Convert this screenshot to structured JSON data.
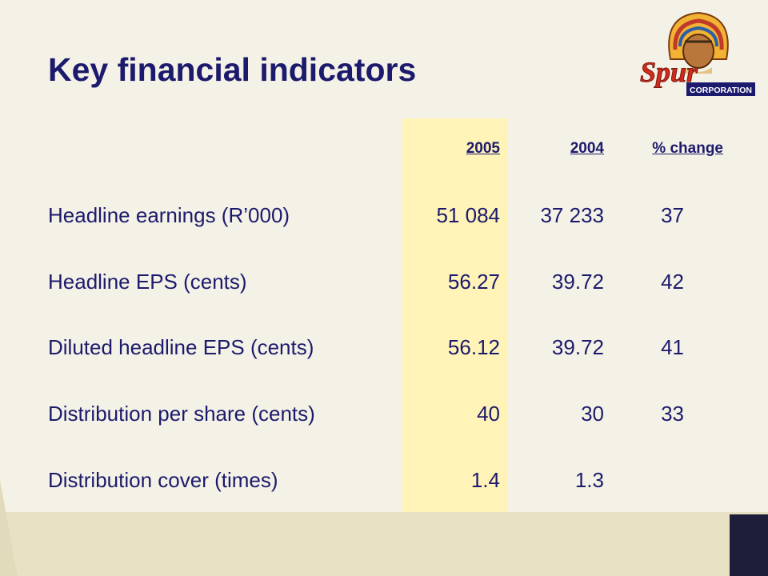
{
  "title": "Key financial indicators",
  "logo": {
    "name": "Spur",
    "caption": "CORPORATION",
    "icon": "chief-headdress-icon"
  },
  "colors": {
    "title": "#1c1a6c",
    "highlight": "#fff3b8",
    "background": "#f4f2e6",
    "logo_red": "#d32a1c"
  },
  "table": {
    "headers": [
      "2005",
      "2004",
      "% change"
    ],
    "rows": [
      {
        "label": "Headline earnings (R’000)",
        "y2005": "51 084",
        "y2004": "37 233",
        "change": "37"
      },
      {
        "label": "Headline EPS (cents)",
        "y2005": "56.27",
        "y2004": "39.72",
        "change": "42"
      },
      {
        "label": "Diluted headline EPS (cents)",
        "y2005": "56.12",
        "y2004": "39.72",
        "change": "41"
      },
      {
        "label": "Distribution per share (cents)",
        "y2005": "40",
        "y2004": "30",
        "change": "33"
      },
      {
        "label": "Distribution cover (times)",
        "y2005": "1.4",
        "y2004": "1.3",
        "change": ""
      }
    ]
  }
}
